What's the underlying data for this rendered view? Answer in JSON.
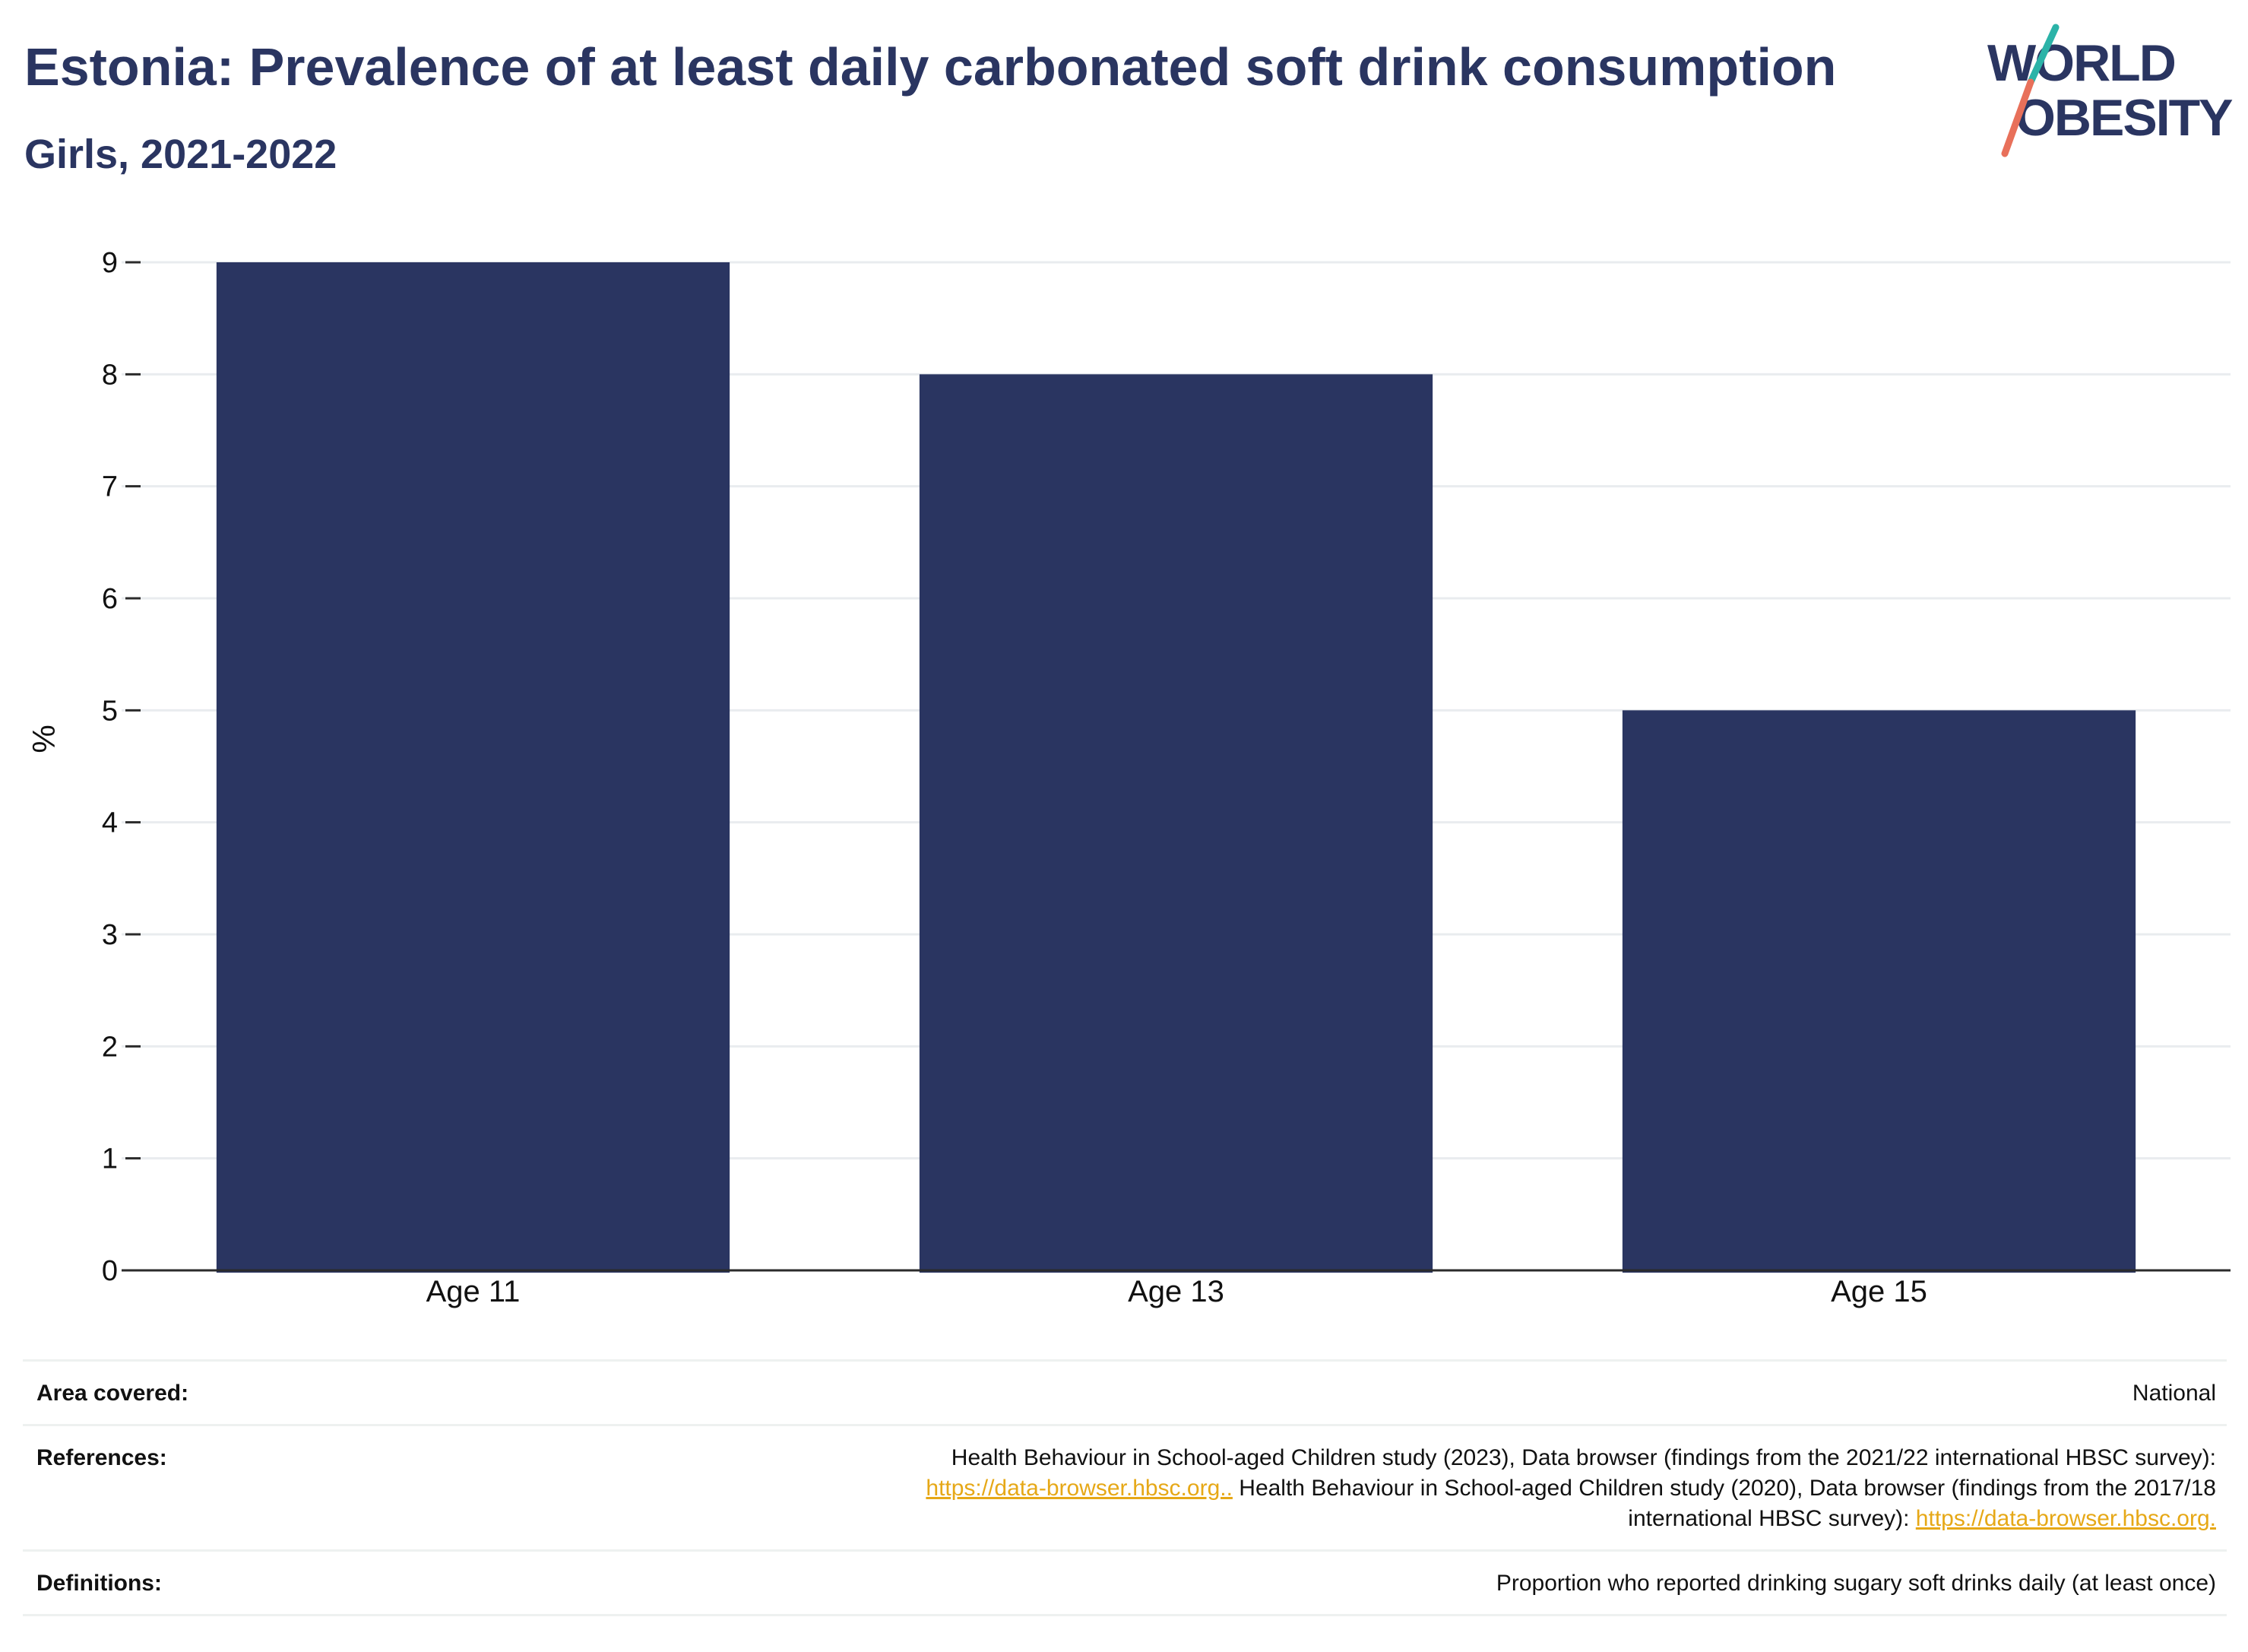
{
  "header": {
    "title": "Estonia: Prevalence of at least daily carbonated soft drink consumption",
    "subtitle": "Girls, 2021-2022"
  },
  "logo": {
    "line1": "WORLD",
    "line2": "OBESITY",
    "accent_teal": "#2bb3a8",
    "accent_coral": "#e8705a"
  },
  "chart_data": {
    "type": "bar",
    "categories": [
      "Age 11",
      "Age 13",
      "Age 15"
    ],
    "values": [
      9,
      8,
      5
    ],
    "ylabel": "%",
    "xlabel": "",
    "ylim": [
      0,
      9
    ],
    "yticks": [
      "0",
      "1",
      "2",
      "3",
      "4",
      "5",
      "6",
      "7",
      "8",
      "9"
    ],
    "grid": true,
    "bar_color": "#2a3561"
  },
  "meta": {
    "area_label": "Area covered:",
    "area_value": "National",
    "references_label": "References:",
    "references": {
      "text1": "Health Behaviour in School-aged Children study (2023), Data browser (findings from the 2021/22 international HBSC survey):",
      "link1": "https://data-browser.hbsc.org..",
      "text2": " Health Behaviour in School-aged Children study (2020), Data browser (findings from the 2017/18",
      "text3": "international HBSC survey): ",
      "link2": "https://data-browser.hbsc.org."
    },
    "definitions_label": "Definitions:",
    "definitions_value": "Proportion who reported drinking sugary soft drinks daily (at least once)"
  }
}
